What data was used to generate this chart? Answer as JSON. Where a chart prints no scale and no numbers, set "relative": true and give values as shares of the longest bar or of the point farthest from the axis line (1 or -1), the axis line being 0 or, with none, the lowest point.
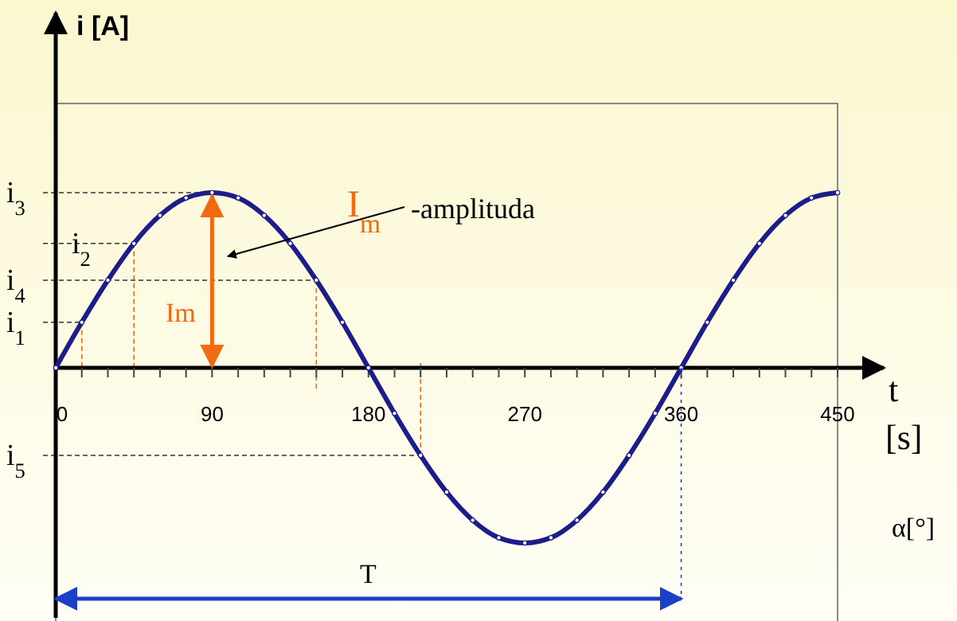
{
  "chart_data": {
    "type": "line",
    "relative": true,
    "xlabel": "t",
    "x": [
      0,
      15,
      30,
      45,
      60,
      75,
      90,
      105,
      120,
      135,
      150,
      165,
      180,
      195,
      210,
      225,
      240,
      255,
      270,
      285,
      300,
      315,
      330,
      345,
      360,
      375,
      390,
      405,
      420,
      435,
      450
    ],
    "series": [
      {
        "color": "#1c1c8a",
        "values": [
          0,
          0.26,
          0.5,
          0.71,
          0.87,
          0.97,
          1,
          0.97,
          0.87,
          0.71,
          0.5,
          0.26,
          0,
          -0.26,
          -0.5,
          -0.71,
          -0.87,
          -0.97,
          -1,
          -0.97,
          -0.87,
          -0.71,
          -0.5,
          -0.26,
          0,
          0.26,
          0.5,
          0.71,
          0.87,
          0.97,
          1
        ]
      }
    ],
    "xlim": [
      0,
      450
    ],
    "xticks": [
      0,
      {
        "value": 15,
        "label": null
      },
      {
        "value": 30,
        "label": null
      },
      {
        "value": 45,
        "label": null
      },
      {
        "value": 60,
        "label": null
      },
      {
        "value": 75,
        "label": null
      },
      90,
      {
        "value": 105,
        "label": null
      },
      {
        "value": 120,
        "label": null
      },
      {
        "value": 135,
        "label": null
      },
      {
        "value": 150,
        "label": null
      },
      {
        "value": 165,
        "label": null
      },
      180,
      {
        "value": 195,
        "label": null
      },
      {
        "value": 210,
        "label": null
      },
      {
        "value": 225,
        "label": null
      },
      {
        "value": 240,
        "label": null
      },
      {
        "value": 255,
        "label": null
      },
      270,
      {
        "value": 285,
        "label": null
      },
      {
        "value": 300,
        "label": null
      },
      {
        "value": 315,
        "label": null
      },
      {
        "value": 330,
        "label": null
      },
      {
        "value": 345,
        "label": null
      },
      360,
      {
        "value": 375,
        "label": null
      },
      {
        "value": 390,
        "label": null
      },
      {
        "value": 405,
        "label": null
      },
      {
        "value": 420,
        "label": null
      },
      {
        "value": 435,
        "label": null
      },
      450
    ],
    "ref_lines": [
      {
        "axis": "x",
        "value": 360,
        "color": "#1a3fc8",
        "line_style": "dotted"
      }
    ],
    "marker": "circle",
    "line_style": "solid",
    "grid": false,
    "annotations": [
      {
        "text": "i$_{3}$",
        "x": 90,
        "y": 1
      },
      {
        "text": "i$_{2}$",
        "x": 45,
        "y": 0.71
      },
      {
        "text": "i$_{4}$",
        "x": 150,
        "y": 0.5
      },
      {
        "text": "i$_{1}$",
        "x": 15,
        "y": 0.26
      },
      {
        "text": "i$_{5}$",
        "x": 210,
        "y": -0.5
      },
      "Im",
      "I$_{m}$",
      "-amplituda",
      "[s]",
      "α[°]",
      "T",
      "i [A]"
    ]
  }
}
